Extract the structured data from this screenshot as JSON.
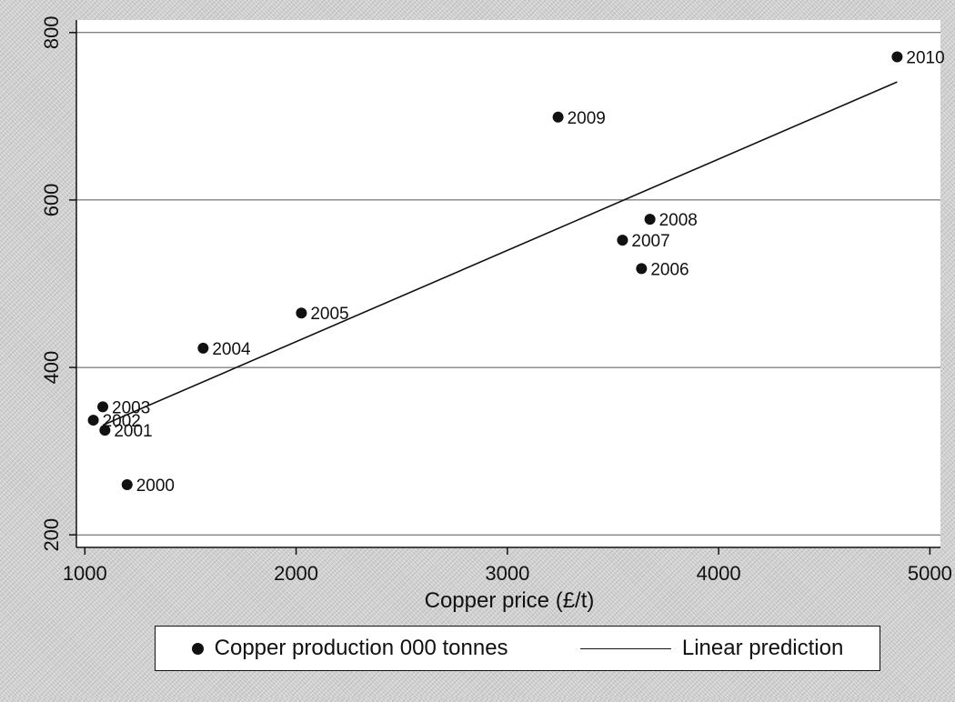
{
  "chart_data": {
    "type": "scatter",
    "xlabel": "Copper price (£/t)",
    "ylabel": "",
    "xlim": [
      960,
      5050
    ],
    "ylim": [
      185,
      815
    ],
    "xticks": [
      1000,
      2000,
      3000,
      4000,
      5000
    ],
    "yticks": [
      200,
      400,
      600,
      800
    ],
    "grid": "horizontal",
    "legend_position": "bottom",
    "series": [
      {
        "name": "Copper production 000 tonnes",
        "marker": "filled-circle",
        "points": [
          {
            "label": "2000",
            "x": 1200,
            "y": 260
          },
          {
            "label": "2001",
            "x": 1095,
            "y": 325
          },
          {
            "label": "2002",
            "x": 1040,
            "y": 337
          },
          {
            "label": "2003",
            "x": 1085,
            "y": 353
          },
          {
            "label": "2004",
            "x": 1560,
            "y": 423
          },
          {
            "label": "2005",
            "x": 2025,
            "y": 465
          },
          {
            "label": "2006",
            "x": 3635,
            "y": 518
          },
          {
            "label": "2007",
            "x": 3545,
            "y": 552
          },
          {
            "label": "2008",
            "x": 3675,
            "y": 577
          },
          {
            "label": "2009",
            "x": 3240,
            "y": 699
          },
          {
            "label": "2010",
            "x": 4845,
            "y": 771
          }
        ]
      },
      {
        "name": "Linear prediction",
        "marker": "line",
        "points": [
          {
            "x": 1085,
            "y": 331
          },
          {
            "x": 4845,
            "y": 741
          }
        ]
      }
    ]
  },
  "legend": {
    "scatter_label": "Copper production 000 tonnes",
    "line_label": "Linear prediction"
  }
}
